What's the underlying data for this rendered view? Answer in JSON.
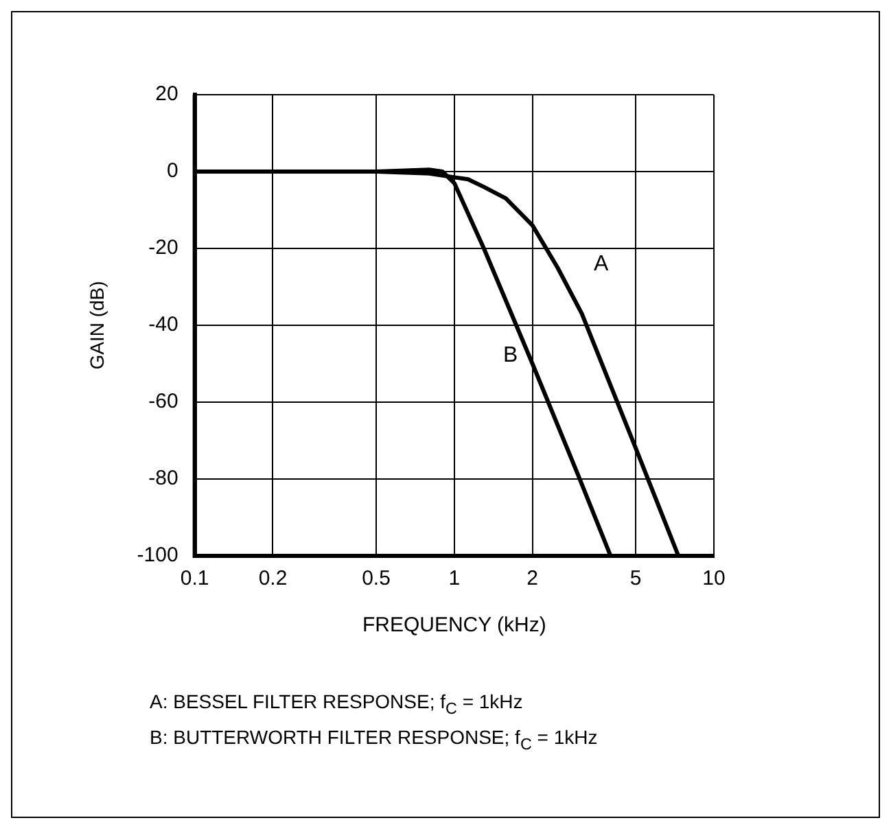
{
  "chart_data": {
    "type": "line",
    "xlabel": "FREQUENCY (kHz)",
    "ylabel": "GAIN (dB)",
    "log": "x",
    "xlim": [
      0.1,
      10
    ],
    "xticks": [
      0.1,
      0.2,
      0.5,
      1,
      2,
      5,
      10
    ],
    "ylim": [
      -100,
      20
    ],
    "yticks": [
      -100,
      -80,
      -60,
      -40,
      -20,
      0,
      20
    ],
    "grid": true,
    "legend": false,
    "marker": "none",
    "line_style": "solid",
    "series": [
      {
        "name": "A",
        "color": "#000000",
        "x": [
          0.1,
          0.5,
          0.8,
          1,
          1.13,
          1.3,
          1.58,
          2,
          2.5,
          3.1,
          5,
          7.3
        ],
        "values": [
          0,
          0,
          -0.5,
          -1.5,
          -2,
          -4,
          -7,
          -14,
          -25,
          -37,
          -72,
          -100
        ]
      },
      {
        "name": "B",
        "color": "#000000",
        "x": [
          0.1,
          0.5,
          0.8,
          0.9,
          1,
          1.3,
          2,
          3,
          4
        ],
        "values": [
          0,
          0,
          0.5,
          0,
          -3,
          -20,
          -50,
          -79,
          -100
        ]
      }
    ],
    "annotations": [
      "A: BESSEL FILTER RESPONSE; f$_{C}$ = 1kHz",
      "B: BUTTERWORTH FILTER RESPONSE; f$_{C}$ = 1kHz"
    ]
  }
}
